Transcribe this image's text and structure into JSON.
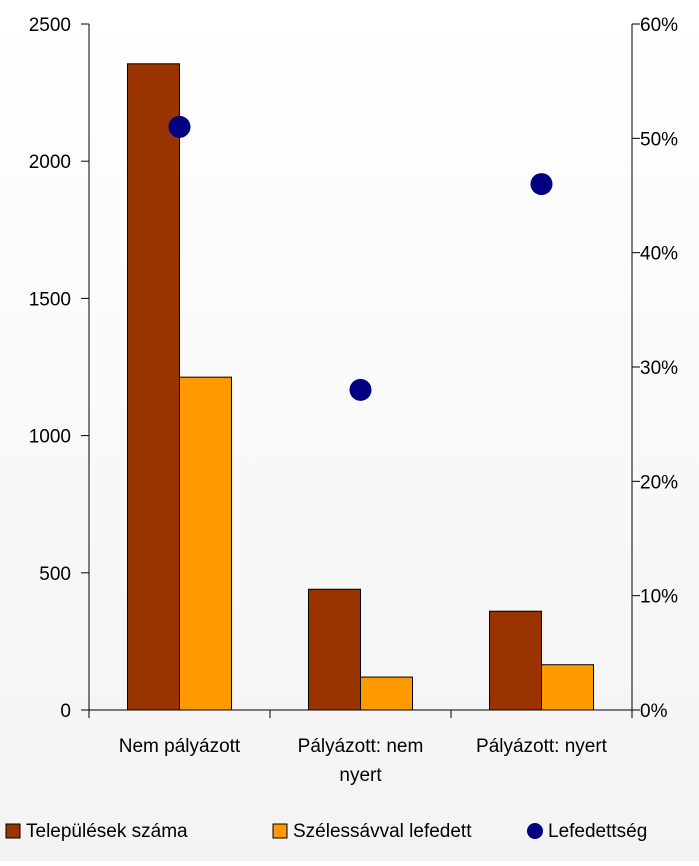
{
  "chart_data": {
    "type": "bar",
    "title": "",
    "xlabel": "",
    "ylabel": "",
    "categories": [
      [
        "Nem pályázott"
      ],
      [
        "Pályázott: nem",
        "nyert"
      ],
      [
        "Pályázott: nyert"
      ]
    ],
    "series": [
      {
        "name": "Települések száma",
        "axis": "left",
        "kind": "bar",
        "color": "#993300",
        "values": [
          2355,
          440,
          360
        ]
      },
      {
        "name": "Szélessávval lefedett",
        "axis": "left",
        "kind": "bar",
        "color": "#ff9900",
        "values": [
          1213,
          120,
          165
        ]
      },
      {
        "name": "Lefedettség",
        "axis": "right",
        "kind": "marker",
        "color": "#000080",
        "values": [
          0.51,
          0.28,
          0.46
        ]
      }
    ],
    "y_left": {
      "ylim": [
        0,
        2500
      ],
      "ticks": [
        "0",
        "500",
        "1000",
        "1500",
        "2000",
        "2500"
      ]
    },
    "y_right": {
      "ylim": [
        0,
        0.6
      ],
      "ticks": [
        "0%",
        "10%",
        "20%",
        "30%",
        "40%",
        "50%",
        "60%"
      ]
    },
    "grid": false,
    "legend_position": "bottom"
  }
}
